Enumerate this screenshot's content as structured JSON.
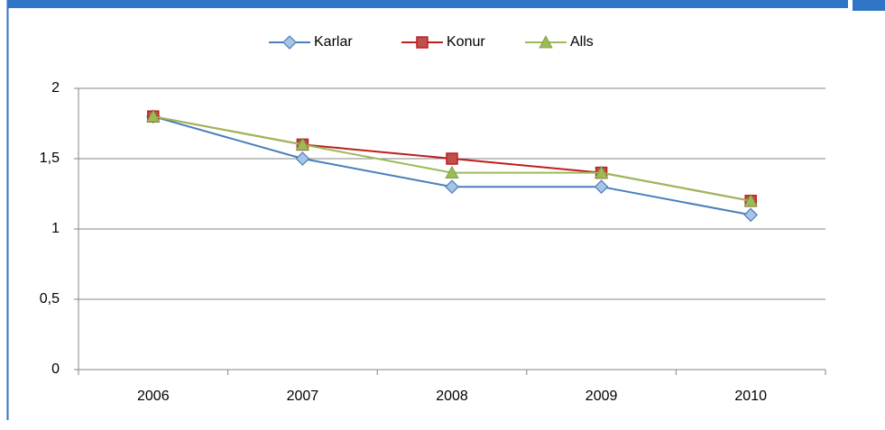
{
  "chart_data": {
    "type": "line",
    "categories": [
      "2006",
      "2007",
      "2008",
      "2009",
      "2010"
    ],
    "series": [
      {
        "name": "Karlar",
        "color": "#4a7ebb",
        "marker": "diamond",
        "values": [
          1.8,
          1.5,
          1.3,
          1.3,
          1.1
        ]
      },
      {
        "name": "Konur",
        "color": "#be1e1e",
        "marker": "square",
        "values": [
          1.8,
          1.6,
          1.5,
          1.4,
          1.2
        ]
      },
      {
        "name": "Alls",
        "color": "#9bbb59",
        "marker": "triangle",
        "values": [
          1.8,
          1.6,
          1.4,
          1.4,
          1.2
        ]
      }
    ],
    "ylim": [
      0,
      2
    ],
    "yticks": [
      0,
      {
        "value": 0.5,
        "label": "0,5"
      },
      1,
      {
        "value": 1.5,
        "label": "1,5"
      },
      2
    ],
    "grid": true,
    "legend": "top"
  }
}
